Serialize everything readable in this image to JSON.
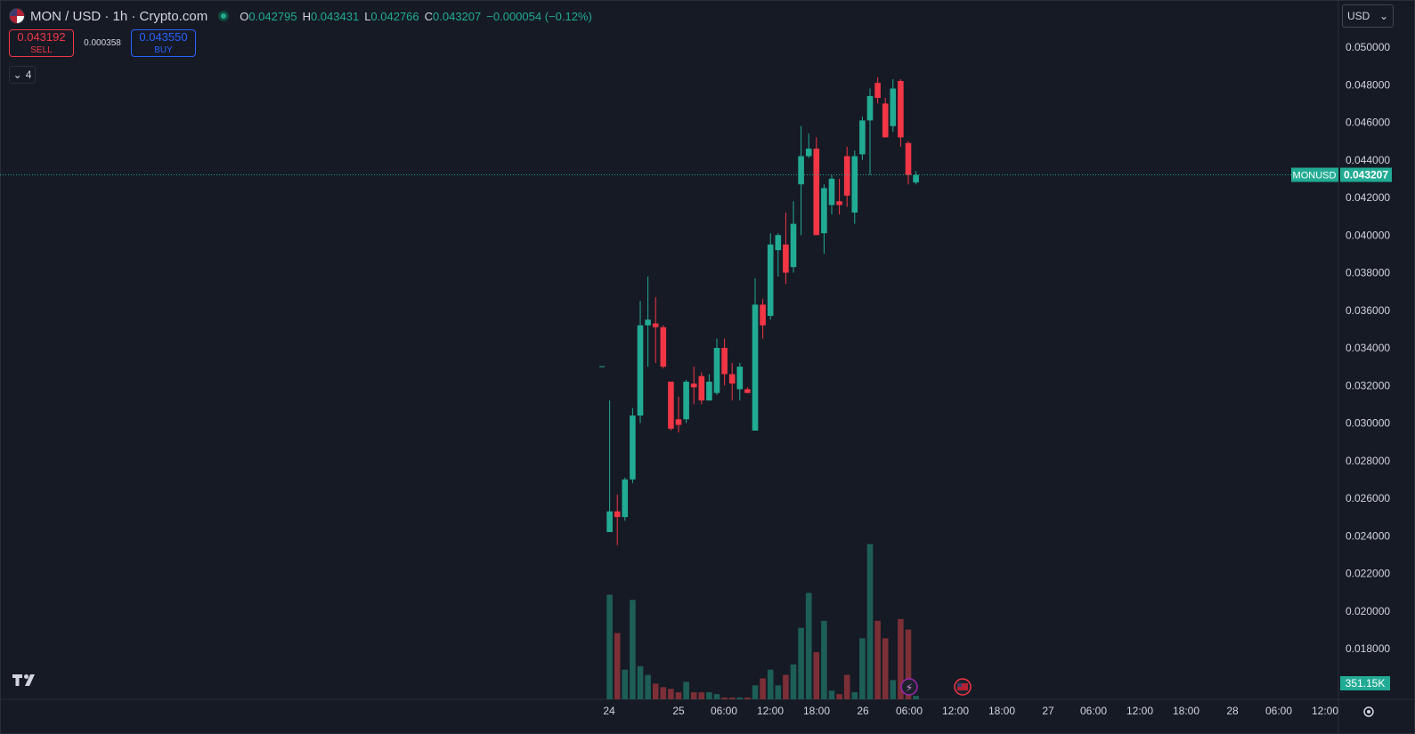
{
  "header": {
    "symbol": "MON / USD · 1h · Crypto.com",
    "o_label": "O",
    "o_value": "0.042795",
    "h_label": "H",
    "h_value": "0.043431",
    "l_label": "L",
    "l_value": "0.042766",
    "c_label": "C",
    "c_value": "0.043207",
    "change": "−0.000054 (−0.12%)"
  },
  "trade": {
    "sell_price": "0.043192",
    "sell_label": "SELL",
    "spread": "0.000358",
    "buy_price": "0.043550",
    "buy_label": "BUY"
  },
  "indicators_count": "4",
  "currency": "USD",
  "colors": {
    "up": "#22ab94",
    "down": "#f23645",
    "background": "#161a25"
  },
  "chart_data": {
    "type": "candlestick",
    "price_axis": {
      "min": 0.016,
      "max": 0.051,
      "ticks": [
        "0.050000",
        "0.048000",
        "0.046000",
        "0.044000",
        "0.042000",
        "0.040000",
        "0.038000",
        "0.036000",
        "0.034000",
        "0.032000",
        "0.030000",
        "0.028000",
        "0.026000",
        "0.024000",
        "0.022000",
        "0.020000",
        "0.018000"
      ]
    },
    "time_axis": {
      "labels": [
        "24",
        "25",
        "06:00",
        "12:00",
        "18:00",
        "26",
        "06:00",
        "12:00",
        "18:00",
        "27",
        "06:00",
        "12:00",
        "18:00",
        "28",
        "06:00",
        "12:00"
      ]
    },
    "last_price": {
      "symbol": "MONUSD",
      "value": "0.043207",
      "price": 0.043207
    },
    "volume_label": "351.15K",
    "candles": [
      {
        "o": 0.033,
        "h": 0.033,
        "l": 0.033,
        "c": 0.033,
        "v": 0
      },
      {
        "o": 0.0242,
        "h": 0.0312,
        "l": 0.0242,
        "c": 0.0253,
        "v": 0.6
      },
      {
        "o": 0.0253,
        "h": 0.0262,
        "l": 0.0235,
        "c": 0.025,
        "v": 0.38
      },
      {
        "o": 0.025,
        "h": 0.0271,
        "l": 0.0248,
        "c": 0.027,
        "v": 0.17
      },
      {
        "o": 0.027,
        "h": 0.0308,
        "l": 0.0268,
        "c": 0.0304,
        "v": 0.57
      },
      {
        "o": 0.0304,
        "h": 0.0365,
        "l": 0.03,
        "c": 0.0352,
        "v": 0.19
      },
      {
        "o": 0.0352,
        "h": 0.0378,
        "l": 0.033,
        "c": 0.0355,
        "v": 0.14
      },
      {
        "o": 0.0353,
        "h": 0.0367,
        "l": 0.0332,
        "c": 0.0351,
        "v": 0.09
      },
      {
        "o": 0.0351,
        "h": 0.0352,
        "l": 0.0329,
        "c": 0.033,
        "v": 0.07
      },
      {
        "o": 0.0322,
        "h": 0.0322,
        "l": 0.0296,
        "c": 0.0297,
        "v": 0.06
      },
      {
        "o": 0.0302,
        "h": 0.0314,
        "l": 0.0295,
        "c": 0.0299,
        "v": 0.04
      },
      {
        "o": 0.0302,
        "h": 0.0323,
        "l": 0.03,
        "c": 0.0322,
        "v": 0.1
      },
      {
        "o": 0.0321,
        "h": 0.033,
        "l": 0.031,
        "c": 0.0319,
        "v": 0.04
      },
      {
        "o": 0.0325,
        "h": 0.0327,
        "l": 0.031,
        "c": 0.0312,
        "v": 0.04
      },
      {
        "o": 0.0312,
        "h": 0.0326,
        "l": 0.0312,
        "c": 0.0322,
        "v": 0.04
      },
      {
        "o": 0.0316,
        "h": 0.0345,
        "l": 0.0315,
        "c": 0.034,
        "v": 0.03
      },
      {
        "o": 0.034,
        "h": 0.0345,
        "l": 0.032,
        "c": 0.0326,
        "v": 0.01
      },
      {
        "o": 0.0326,
        "h": 0.0332,
        "l": 0.0312,
        "c": 0.0321,
        "v": 0.01
      },
      {
        "o": 0.0318,
        "h": 0.0332,
        "l": 0.0312,
        "c": 0.033,
        "v": 0.01
      },
      {
        "o": 0.0318,
        "h": 0.0319,
        "l": 0.0316,
        "c": 0.0316,
        "v": 0.01
      },
      {
        "o": 0.0296,
        "h": 0.0377,
        "l": 0.0296,
        "c": 0.0363,
        "v": 0.08
      },
      {
        "o": 0.0363,
        "h": 0.0366,
        "l": 0.0345,
        "c": 0.0352,
        "v": 0.12
      },
      {
        "o": 0.0357,
        "h": 0.0401,
        "l": 0.0355,
        "c": 0.0395,
        "v": 0.17
      },
      {
        "o": 0.0392,
        "h": 0.0401,
        "l": 0.0378,
        "c": 0.04,
        "v": 0.08
      },
      {
        "o": 0.0395,
        "h": 0.0412,
        "l": 0.0374,
        "c": 0.038,
        "v": 0.14
      },
      {
        "o": 0.0383,
        "h": 0.0418,
        "l": 0.038,
        "c": 0.0406,
        "v": 0.2
      },
      {
        "o": 0.0427,
        "h": 0.0458,
        "l": 0.04,
        "c": 0.0442,
        "v": 0.41
      },
      {
        "o": 0.0442,
        "h": 0.0454,
        "l": 0.0441,
        "c": 0.0446,
        "v": 0.61
      },
      {
        "o": 0.0446,
        "h": 0.0452,
        "l": 0.04,
        "c": 0.04,
        "v": 0.27
      },
      {
        "o": 0.0401,
        "h": 0.0427,
        "l": 0.039,
        "c": 0.0425,
        "v": 0.45
      },
      {
        "o": 0.0416,
        "h": 0.0432,
        "l": 0.0411,
        "c": 0.043,
        "v": 0.05
      },
      {
        "o": 0.0418,
        "h": 0.043,
        "l": 0.0411,
        "c": 0.0416,
        "v": 0.03
      },
      {
        "o": 0.0442,
        "h": 0.0447,
        "l": 0.0415,
        "c": 0.0421,
        "v": 0.14
      },
      {
        "o": 0.0412,
        "h": 0.0445,
        "l": 0.0406,
        "c": 0.0442,
        "v": 0.04
      },
      {
        "o": 0.0443,
        "h": 0.0463,
        "l": 0.044,
        "c": 0.0461,
        "v": 0.35
      },
      {
        "o": 0.0461,
        "h": 0.0478,
        "l": 0.0432,
        "c": 0.0474,
        "v": 0.89
      },
      {
        "o": 0.0481,
        "h": 0.0484,
        "l": 0.047,
        "c": 0.0473,
        "v": 0.45
      },
      {
        "o": 0.047,
        "h": 0.0473,
        "l": 0.0452,
        "c": 0.0452,
        "v": 0.35
      },
      {
        "o": 0.0458,
        "h": 0.0483,
        "l": 0.0455,
        "c": 0.0478,
        "v": 0.11
      },
      {
        "o": 0.0482,
        "h": 0.0483,
        "l": 0.0447,
        "c": 0.0452,
        "v": 0.46
      },
      {
        "o": 0.0449,
        "h": 0.045,
        "l": 0.0427,
        "c": 0.0432,
        "v": 0.4
      },
      {
        "o": 0.0428,
        "h": 0.0434,
        "l": 0.0427,
        "c": 0.0432,
        "v": 0.02
      }
    ]
  }
}
